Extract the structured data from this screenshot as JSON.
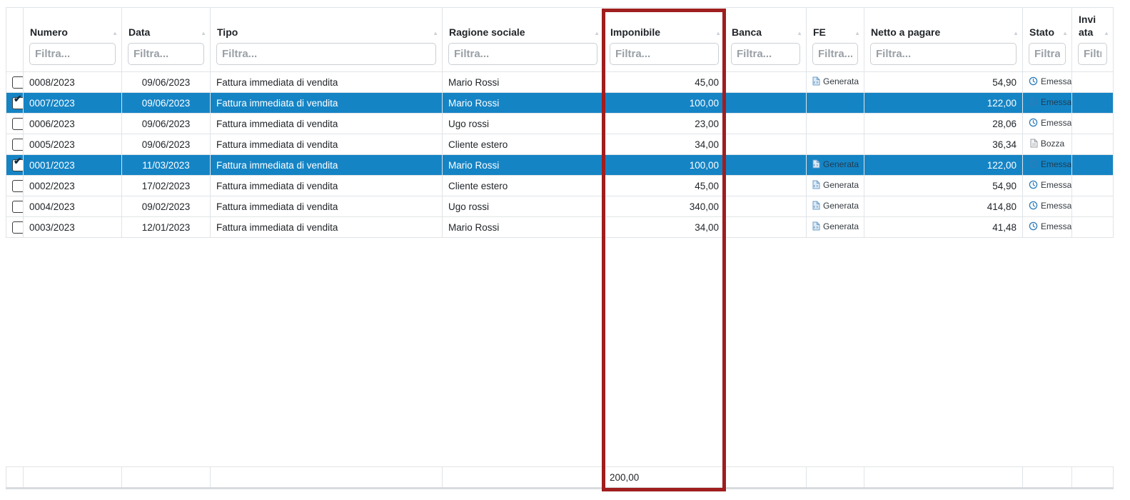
{
  "icons": {
    "sort": "▲",
    "check": "✔"
  },
  "colors": {
    "selected_row": "#1584c5",
    "highlight_rect": "#a01e1e",
    "status_icon_blue": "#2e7cb8"
  },
  "table": {
    "columns": [
      {
        "key": "numero",
        "label": "Numero",
        "filter_placeholder": "Filtra..."
      },
      {
        "key": "data",
        "label": "Data",
        "filter_placeholder": "Filtra..."
      },
      {
        "key": "tipo",
        "label": "Tipo",
        "filter_placeholder": "Filtra..."
      },
      {
        "key": "ragione_sociale",
        "label": "Ragione sociale",
        "filter_placeholder": "Filtra..."
      },
      {
        "key": "imponibile",
        "label": "Imponibile",
        "filter_placeholder": "Filtra..."
      },
      {
        "key": "banca",
        "label": "Banca",
        "filter_placeholder": "Filtra..."
      },
      {
        "key": "fe",
        "label": "FE",
        "filter_placeholder": "Filtra..."
      },
      {
        "key": "netto_a_pagare",
        "label": "Netto a pagare",
        "filter_placeholder": "Filtra..."
      },
      {
        "key": "stato",
        "label": "Stato",
        "filter_placeholder": "Filtra..."
      },
      {
        "key": "inviata",
        "label": "Inviata",
        "filter_placeholder": "Filtra..."
      }
    ],
    "rows": [
      {
        "numero": "0008/2023",
        "data": "09/06/2023",
        "tipo": "Fattura immediata di vendita",
        "ragione_sociale": "Mario Rossi",
        "imponibile": "45,00",
        "banca": "",
        "fe": "Generata",
        "netto_a_pagare": "54,90",
        "stato": "Emessa",
        "stato_icon": "clock",
        "inviata": "",
        "selected": false,
        "checked": false
      },
      {
        "numero": "0007/2023",
        "data": "09/06/2023",
        "tipo": "Fattura immediata di vendita",
        "ragione_sociale": "Mario Rossi",
        "imponibile": "100,00",
        "banca": "",
        "fe": "",
        "netto_a_pagare": "122,00",
        "stato": "Emessa",
        "stato_icon": "clock",
        "inviata": "",
        "selected": true,
        "checked": true
      },
      {
        "numero": "0006/2023",
        "data": "09/06/2023",
        "tipo": "Fattura immediata di vendita",
        "ragione_sociale": "Ugo rossi",
        "imponibile": "23,00",
        "banca": "",
        "fe": "",
        "netto_a_pagare": "28,06",
        "stato": "Emessa",
        "stato_icon": "clock",
        "inviata": "",
        "selected": false,
        "checked": false
      },
      {
        "numero": "0005/2023",
        "data": "09/06/2023",
        "tipo": "Fattura immediata di vendita",
        "ragione_sociale": "Cliente estero",
        "imponibile": "34,00",
        "banca": "",
        "fe": "",
        "netto_a_pagare": "36,34",
        "stato": "Bozza",
        "stato_icon": "document",
        "inviata": "",
        "selected": false,
        "checked": false
      },
      {
        "numero": "0001/2023",
        "data": "11/03/2023",
        "tipo": "Fattura immediata di vendita",
        "ragione_sociale": "Mario Rossi",
        "imponibile": "100,00",
        "banca": "",
        "fe": "Generata",
        "netto_a_pagare": "122,00",
        "stato": "Emessa",
        "stato_icon": "clock",
        "inviata": "",
        "selected": true,
        "checked": true
      },
      {
        "numero": "0002/2023",
        "data": "17/02/2023",
        "tipo": "Fattura immediata di vendita",
        "ragione_sociale": "Cliente estero",
        "imponibile": "45,00",
        "banca": "",
        "fe": "Generata",
        "netto_a_pagare": "54,90",
        "stato": "Emessa",
        "stato_icon": "clock",
        "inviata": "",
        "selected": false,
        "checked": false
      },
      {
        "numero": "0004/2023",
        "data": "09/02/2023",
        "tipo": "Fattura immediata di vendita",
        "ragione_sociale": "Ugo rossi",
        "imponibile": "340,00",
        "banca": "",
        "fe": "Generata",
        "netto_a_pagare": "414,80",
        "stato": "Emessa",
        "stato_icon": "clock",
        "inviata": "",
        "selected": false,
        "checked": false
      },
      {
        "numero": "0003/2023",
        "data": "12/01/2023",
        "tipo": "Fattura immediata di vendita",
        "ragione_sociale": "Mario Rossi",
        "imponibile": "34,00",
        "banca": "",
        "fe": "Generata",
        "netto_a_pagare": "41,48",
        "stato": "Emessa",
        "stato_icon": "clock",
        "inviata": "",
        "selected": false,
        "checked": false
      }
    ],
    "footer": {
      "imponibile_total": "200,00"
    }
  }
}
